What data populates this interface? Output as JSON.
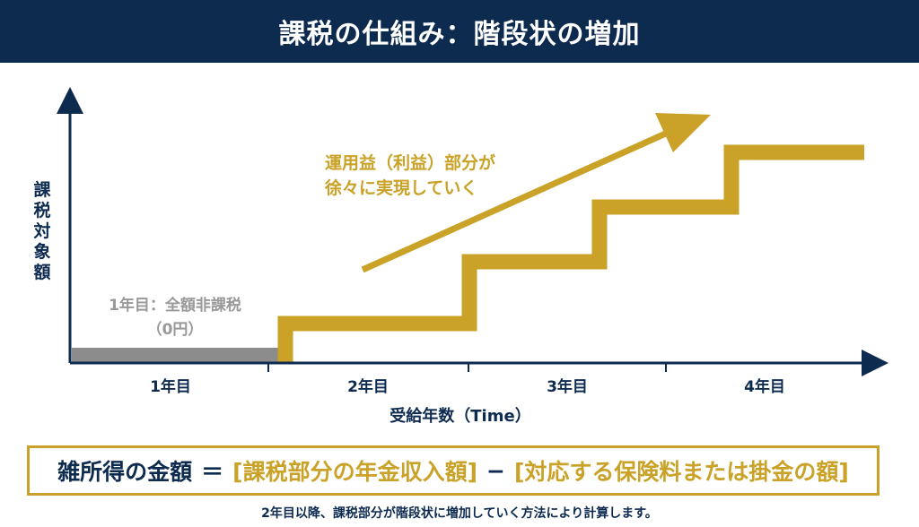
{
  "header": {
    "title": "課税の仕組み：階段状の増加"
  },
  "diagram": {
    "y_axis_label": "課税対象額",
    "x_axis_label": "受給年数（Time）",
    "year_labels": [
      "1年目",
      "2年目",
      "3年目",
      "4年目"
    ],
    "year1_note_line1": "1年目：全額非課税",
    "year1_note_line2": "（0円）",
    "arrow_note_line1": "運用益（利益）部分が",
    "arrow_note_line2": "徐々に実現していく",
    "taxable_step_levels": [
      0,
      1,
      2,
      3
    ],
    "colors": {
      "navy": "#0d2a4f",
      "gold": "#c9a227",
      "gray": "#8c8c8c"
    }
  },
  "formula": {
    "lhs": "雑所得の金額",
    "eq": "＝",
    "term1": "[課税部分の年金収入額]",
    "minus": "−",
    "term2": "[対応する保険料または掛金の額]"
  },
  "footnote": "2年目以降、課税部分が階段状に増加していく方法により計算します。"
}
